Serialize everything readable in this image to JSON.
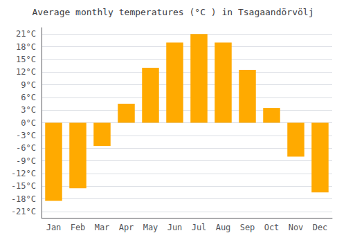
{
  "chart_data": {
    "type": "bar",
    "title": "Average monthly temperatures (°C ) in Tsagaandörvölj",
    "categories": [
      "Jan",
      "Feb",
      "Mar",
      "Apr",
      "May",
      "Jun",
      "Jul",
      "Aug",
      "Sep",
      "Oct",
      "Nov",
      "Dec"
    ],
    "values": [
      -18.5,
      -15.5,
      -5.5,
      4.5,
      13.0,
      19.0,
      21.0,
      19.0,
      12.5,
      3.5,
      -8.0,
      -16.5
    ],
    "color": "#FFAA00",
    "ylim": [
      -22.5,
      22.5
    ],
    "yticks": [
      {
        "value": -21,
        "label": "-21°C"
      },
      {
        "value": -18,
        "label": "-18°C"
      },
      {
        "value": -15,
        "label": "-15°C"
      },
      {
        "value": -12,
        "label": "-12°C"
      },
      {
        "value": -9,
        "label": "-9°C"
      },
      {
        "value": -6,
        "label": "-6°C"
      },
      {
        "value": -3,
        "label": "-3°C"
      },
      {
        "value": 0,
        "label": "0°C"
      },
      {
        "value": 3,
        "label": "3°C"
      },
      {
        "value": 6,
        "label": "6°C"
      },
      {
        "value": 9,
        "label": "9°C"
      },
      {
        "value": 12,
        "label": "12°C"
      },
      {
        "value": 15,
        "label": "15°C"
      },
      {
        "value": 18,
        "label": "18°C"
      },
      {
        "value": 21,
        "label": "21°C"
      }
    ],
    "grid": true
  }
}
